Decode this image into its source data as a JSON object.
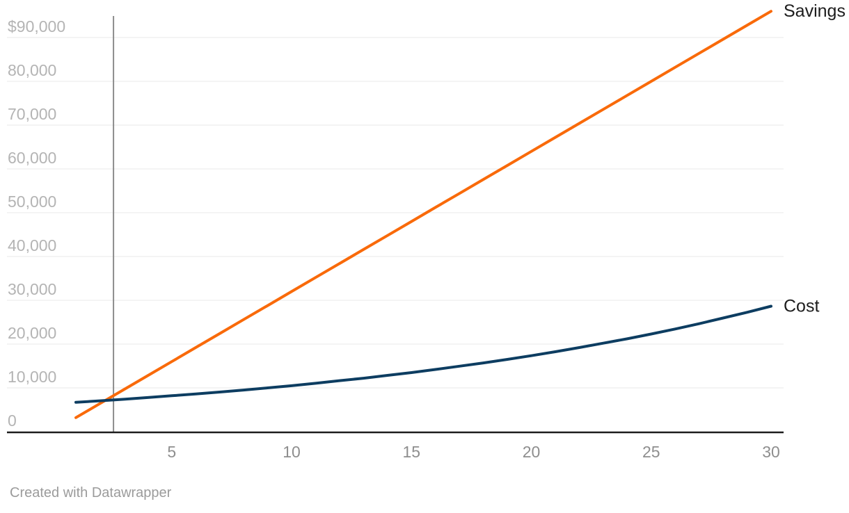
{
  "chart_data": {
    "type": "line",
    "title": "",
    "xlabel": "",
    "ylabel": "",
    "grid": "horizontal-only",
    "legend_position": "line-end-labels",
    "xlim": [
      1,
      30
    ],
    "ylim": [
      0,
      96000
    ],
    "x_ticks": [
      5,
      10,
      15,
      20,
      25,
      30
    ],
    "y_ticks": [
      {
        "value": 0,
        "label": "0"
      },
      {
        "value": 10000,
        "label": "10,000"
      },
      {
        "value": 20000,
        "label": "20,000"
      },
      {
        "value": 30000,
        "label": "30,000"
      },
      {
        "value": 40000,
        "label": "40,000"
      },
      {
        "value": 50000,
        "label": "50,000"
      },
      {
        "value": 60000,
        "label": "60,000"
      },
      {
        "value": 70000,
        "label": "70,000"
      },
      {
        "value": 80000,
        "label": "80,000"
      },
      {
        "value": 90000,
        "label": "$90,000"
      }
    ],
    "break_even_marker_x": 2.57,
    "x": [
      1,
      2,
      3,
      4,
      5,
      6,
      7,
      8,
      9,
      10,
      11,
      12,
      13,
      14,
      15,
      16,
      17,
      18,
      19,
      20,
      21,
      22,
      23,
      24,
      25,
      26,
      27,
      28,
      29,
      30
    ],
    "series": [
      {
        "name": "Savings",
        "color": "#f96a0a",
        "values": [
          3200,
          6400,
          9600,
          12800,
          16000,
          19200,
          22400,
          25600,
          28800,
          32000,
          35200,
          38400,
          41600,
          44800,
          48000,
          51200,
          54400,
          57600,
          60800,
          64000,
          67200,
          70400,
          73600,
          76800,
          80000,
          83200,
          86400,
          89600,
          92800,
          96000
        ]
      },
      {
        "name": "Cost",
        "color": "#0d3d61",
        "values": [
          6700,
          7050,
          7400,
          7800,
          8200,
          8600,
          9050,
          9500,
          10000,
          10500,
          11050,
          11650,
          12200,
          12850,
          13500,
          14200,
          14950,
          15700,
          16500,
          17350,
          18250,
          19200,
          20200,
          21200,
          22300,
          23450,
          24650,
          25950,
          27250,
          28650
        ]
      }
    ]
  },
  "footer": {
    "credit": "Created with Datawrapper"
  },
  "colors": {
    "background": "#ffffff",
    "savings_line": "#f96a0a",
    "cost_line": "#0d3d61",
    "gridline": "#e8e8e8",
    "axis_line": "#1c1c1c",
    "marker_line": "#8c8c8c",
    "y_tick_label": "#b4b4b4",
    "x_tick_label": "#8e8e8e",
    "series_label": "#1d1d1d",
    "credit_text": "#9b9b9b"
  }
}
